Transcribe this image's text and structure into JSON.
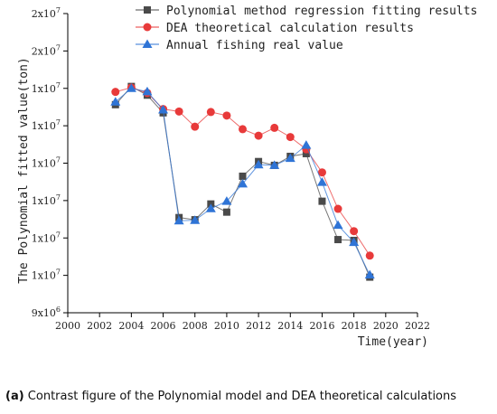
{
  "caption": {
    "label": "(a)",
    "text": "Contrast figure of the Polynomial model and DEA theoretical calculations"
  },
  "chart_data": {
    "type": "line",
    "title": "",
    "xlabel": "Time(year)",
    "ylabel": "The Polynomial fitted value(ton)",
    "xlim": [
      2000,
      2022
    ],
    "ylim": [
      9000000,
      20000000
    ],
    "x_ticks": [
      2000,
      2002,
      2004,
      2006,
      2008,
      2010,
      2012,
      2014,
      2016,
      2018,
      2020,
      2022
    ],
    "y_ticks": [
      9000000,
      10375000,
      11750000,
      13125000,
      14500000,
      15875000,
      17250000,
      18625000,
      20000000
    ],
    "y_tick_labels": [
      "9x10^6",
      "1x10^7",
      "1x10^7",
      "1x10^7",
      "1x10^7",
      "1x10^7",
      "1x10^7",
      "2x10^7",
      "2x10^7"
    ],
    "grid": false,
    "legend_position": "top-right",
    "x": [
      2003,
      2004,
      2005,
      2006,
      2007,
      2008,
      2009,
      2010,
      2011,
      2012,
      2013,
      2014,
      2015,
      2016,
      2017,
      2018,
      2019
    ],
    "series": [
      {
        "name": "Polynomial method regression fitting results",
        "color": "#4a4a4a",
        "marker": "square",
        "values": [
          16650000,
          17320000,
          17000000,
          16350000,
          12500000,
          12420000,
          13000000,
          12700000,
          14020000,
          14560000,
          14420000,
          14750000,
          14850000,
          13100000,
          11690000,
          11660000,
          10310000
        ]
      },
      {
        "name": "DEA theoretical calculation results",
        "color": "#e83a3a",
        "marker": "circle",
        "values": [
          17120000,
          17280000,
          17080000,
          16490000,
          16400000,
          15840000,
          16380000,
          16250000,
          15750000,
          15510000,
          15800000,
          15460000,
          15010000,
          14160000,
          12820000,
          12000000,
          11100000
        ]
      },
      {
        "name": "Annual fishing real value",
        "color": "#2f74d6",
        "marker": "triangle",
        "values": [
          16750000,
          17250000,
          17130000,
          16460000,
          12380000,
          12400000,
          12830000,
          13100000,
          13740000,
          14440000,
          14420000,
          14680000,
          15160000,
          13800000,
          12220000,
          11590000,
          10390000
        ]
      }
    ]
  }
}
